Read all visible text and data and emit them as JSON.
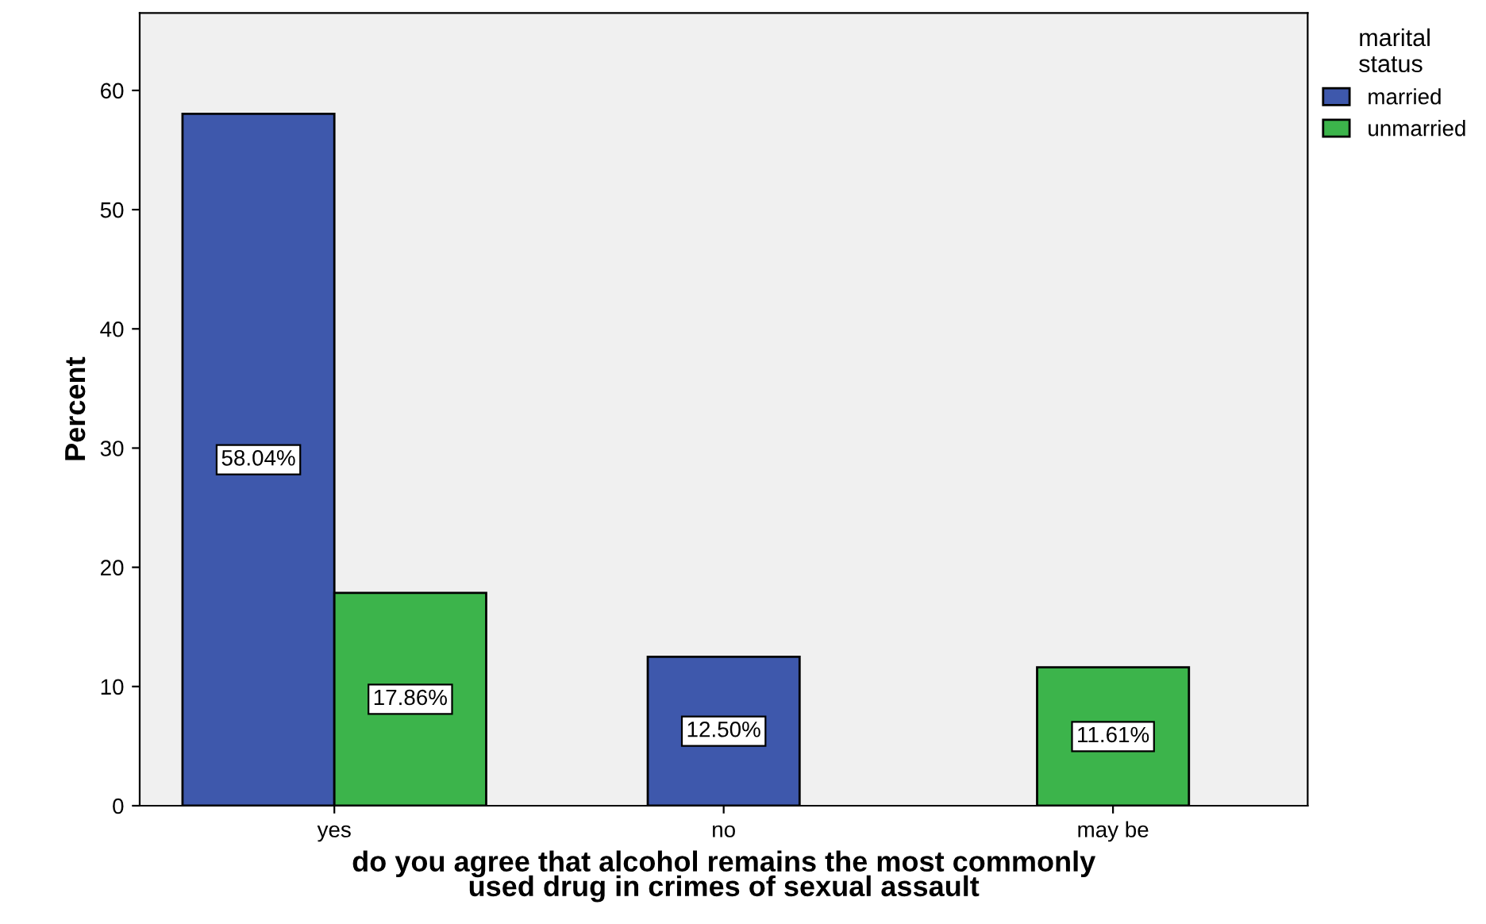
{
  "chart_data": {
    "type": "bar",
    "xlabel": "do you agree that alcohol remains the most commonly\nused drug in crimes of sexual assault",
    "ylabel": "Percent",
    "legend_title": "marital\nstatus",
    "categories": [
      "yes",
      "no",
      "may be"
    ],
    "series": [
      {
        "name": "married",
        "color": "#3e58ac",
        "values": [
          58.04,
          12.5,
          null
        ],
        "value_labels": [
          "58.04%",
          "12.50%",
          null
        ]
      },
      {
        "name": "unmarried",
        "color": "#3cb44b",
        "values": [
          17.86,
          null,
          11.61
        ],
        "value_labels": [
          "17.86%",
          null,
          "11.61%"
        ]
      }
    ],
    "ylim": [
      0,
      66.5
    ],
    "yticks": [
      0,
      10,
      20,
      30,
      40,
      50,
      60
    ],
    "grid": false,
    "legend": "top right"
  }
}
